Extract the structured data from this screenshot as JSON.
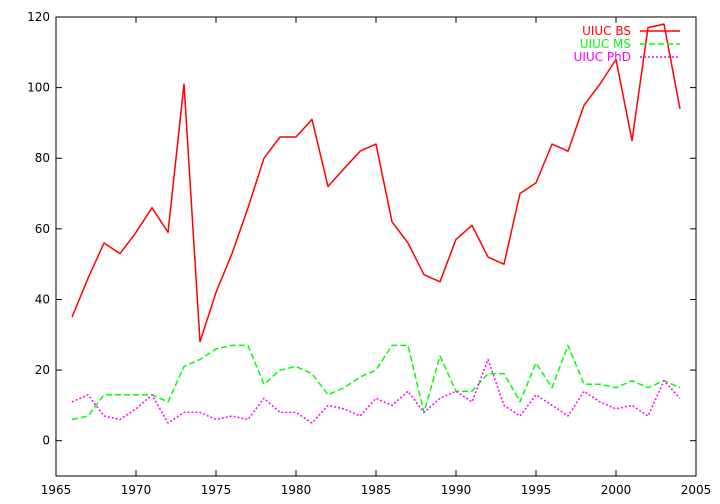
{
  "chart_data": {
    "type": "line",
    "title": "",
    "xlabel": "",
    "ylabel": "",
    "xlim": [
      1965,
      2005
    ],
    "ylim": [
      -10,
      120
    ],
    "xticks": [
      1965,
      1970,
      1975,
      1980,
      1985,
      1990,
      1995,
      2000,
      2005
    ],
    "yticks": [
      0,
      20,
      40,
      60,
      80,
      100,
      120
    ],
    "grid": false,
    "legend_position": "top-right",
    "x": [
      1966,
      1967,
      1968,
      1969,
      1970,
      1971,
      1972,
      1973,
      1974,
      1975,
      1976,
      1977,
      1978,
      1979,
      1980,
      1981,
      1982,
      1983,
      1984,
      1985,
      1986,
      1987,
      1988,
      1989,
      1990,
      1991,
      1992,
      1993,
      1994,
      1995,
      1996,
      1997,
      1998,
      1999,
      2000,
      2001,
      2002,
      2003,
      2004
    ],
    "series": [
      {
        "name": "UIUC BS",
        "color": "#ff0000",
        "dash": "solid",
        "values": [
          35,
          46,
          56,
          53,
          59,
          66,
          59,
          101,
          28,
          42,
          53,
          66,
          80,
          86,
          86,
          91,
          72,
          77,
          82,
          84,
          62,
          56,
          47,
          45,
          57,
          61,
          52,
          50,
          70,
          73,
          84,
          82,
          95,
          101,
          108,
          85,
          117,
          118,
          94
        ]
      },
      {
        "name": "UIUC MS",
        "color": "#00ff00",
        "dash": "dashed",
        "values": [
          6,
          7,
          13,
          13,
          13,
          13,
          11,
          21,
          23,
          26,
          27,
          27,
          16,
          20,
          21,
          19,
          13,
          15,
          18,
          20,
          27,
          27,
          8,
          24,
          14,
          14,
          19,
          19,
          11,
          22,
          15,
          27,
          16,
          16,
          15,
          17,
          15,
          17,
          15
        ]
      },
      {
        "name": "UIUC PhD",
        "color": "#ff00ff",
        "dash": "dotted",
        "values": [
          11,
          13,
          7,
          6,
          9,
          13,
          5,
          8,
          8,
          6,
          7,
          6,
          12,
          8,
          8,
          5,
          10,
          9,
          7,
          12,
          10,
          14,
          8,
          12,
          14,
          11,
          23,
          10,
          7,
          13,
          10,
          7,
          14,
          11,
          9,
          10,
          7,
          17,
          12
        ]
      }
    ]
  }
}
